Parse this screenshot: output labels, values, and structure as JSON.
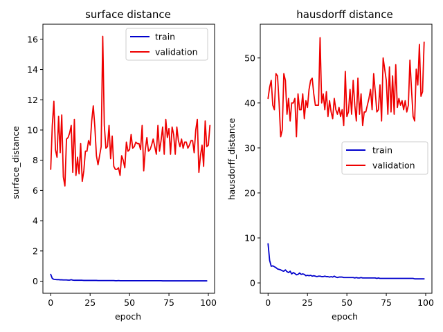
{
  "chart_data": [
    {
      "type": "line",
      "title": "surface distance",
      "xlabel": "epoch",
      "ylabel": "surface_distance",
      "xlim": [
        -4.95,
        103.95
      ],
      "ylim": [
        -0.8,
        17.0
      ],
      "xticks": [
        0,
        25,
        50,
        75,
        100
      ],
      "yticks": [
        0,
        2,
        4,
        6,
        8,
        10,
        12,
        14,
        16
      ],
      "grid": false,
      "legend_position": "top-right",
      "series": [
        {
          "name": "train",
          "color": "#0000cc",
          "values": [
            0.45,
            0.18,
            0.12,
            0.11,
            0.1,
            0.1,
            0.09,
            0.09,
            0.08,
            0.08,
            0.08,
            0.07,
            0.07,
            0.1,
            0.07,
            0.06,
            0.06,
            0.06,
            0.06,
            0.06,
            0.06,
            0.05,
            0.05,
            0.05,
            0.05,
            0.05,
            0.05,
            0.05,
            0.05,
            0.05,
            0.04,
            0.04,
            0.04,
            0.04,
            0.04,
            0.04,
            0.04,
            0.04,
            0.04,
            0.04,
            0.04,
            0.03,
            0.03,
            0.04,
            0.03,
            0.03,
            0.03,
            0.03,
            0.03,
            0.03,
            0.03,
            0.03,
            0.03,
            0.03,
            0.03,
            0.03,
            0.03,
            0.03,
            0.03,
            0.03,
            0.03,
            0.03,
            0.03,
            0.03,
            0.03,
            0.03,
            0.03,
            0.03,
            0.03,
            0.03,
            0.03,
            0.02,
            0.02,
            0.02,
            0.02,
            0.02,
            0.02,
            0.02,
            0.02,
            0.02,
            0.02,
            0.02,
            0.02,
            0.02,
            0.02,
            0.02,
            0.02,
            0.02,
            0.02,
            0.02,
            0.02,
            0.02,
            0.02,
            0.02,
            0.02,
            0.02,
            0.02,
            0.02,
            0.02,
            0.02
          ]
        },
        {
          "name": "validation",
          "color": "#ee0000",
          "values": [
            7.4,
            10.3,
            11.9,
            8.7,
            8.2,
            10.9,
            8.5,
            11.0,
            6.9,
            6.3,
            9.4,
            9.5,
            9.8,
            10.3,
            7.2,
            10.7,
            7.0,
            8.2,
            7.1,
            9.1,
            6.6,
            7.3,
            8.6,
            8.6,
            9.3,
            9.0,
            10.6,
            11.6,
            10.2,
            8.3,
            7.7,
            8.3,
            8.9,
            16.2,
            10.3,
            8.8,
            8.9,
            10.3,
            8.1,
            9.6,
            7.6,
            7.4,
            7.4,
            7.5,
            7.0,
            8.3,
            8.0,
            7.5,
            9.2,
            8.6,
            8.7,
            9.7,
            8.8,
            8.9,
            9.2,
            9.1,
            9.1,
            8.7,
            10.3,
            7.3,
            8.7,
            9.5,
            8.6,
            8.7,
            9.0,
            9.4,
            8.9,
            8.4,
            10.3,
            8.6,
            9.3,
            10.2,
            8.4,
            10.7,
            9.5,
            10.1,
            8.4,
            10.2,
            9.7,
            8.4,
            10.2,
            9.3,
            8.9,
            9.4,
            8.8,
            9.2,
            9.2,
            8.8,
            9.0,
            9.3,
            9.3,
            8.5,
            10.0,
            10.7,
            7.2,
            8.3,
            9.0,
            7.6,
            10.6,
            8.9,
            9.0,
            10.3
          ]
        }
      ]
    },
    {
      "type": "line",
      "title": "hausdorff distance",
      "xlabel": "epoch",
      "ylabel": "hausdorff_distance",
      "xlim": [
        -4.95,
        103.95
      ],
      "ylim": [
        -2.3,
        57.5
      ],
      "xticks": [
        0,
        25,
        50,
        75,
        100
      ],
      "yticks": [
        0,
        10,
        20,
        30,
        40,
        50
      ],
      "grid": false,
      "legend_position": "center-right",
      "series": [
        {
          "name": "train",
          "color": "#0000cc",
          "values": [
            8.7,
            5.0,
            3.7,
            3.8,
            3.6,
            3.4,
            3.1,
            3.0,
            2.9,
            2.7,
            2.6,
            2.9,
            2.5,
            2.3,
            2.6,
            2.0,
            2.3,
            2.1,
            1.8,
            1.9,
            2.2,
            1.9,
            2.0,
            1.9,
            1.6,
            1.7,
            1.6,
            1.7,
            1.5,
            1.6,
            1.5,
            1.4,
            1.5,
            1.5,
            1.4,
            1.4,
            1.5,
            1.4,
            1.4,
            1.3,
            1.4,
            1.3,
            1.5,
            1.3,
            1.2,
            1.3,
            1.3,
            1.3,
            1.2,
            1.2,
            1.2,
            1.2,
            1.2,
            1.2,
            1.2,
            1.1,
            1.2,
            1.1,
            1.1,
            1.2,
            1.1,
            1.1,
            1.1,
            1.1,
            1.1,
            1.1,
            1.1,
            1.1,
            1.1,
            1.0,
            1.1,
            1.0,
            1.0,
            1.0,
            1.0,
            1.0,
            1.0,
            1.0,
            1.0,
            1.0,
            1.0,
            1.0,
            1.0,
            1.0,
            1.0,
            1.0,
            1.0,
            1.0,
            1.0,
            1.0,
            1.0,
            1.0,
            1.0,
            0.9,
            0.9,
            0.9,
            0.9,
            0.9,
            0.9,
            0.9
          ]
        },
        {
          "name": "validation",
          "color": "#ee0000",
          "values": [
            41.0,
            43.5,
            45.0,
            39.5,
            38.5,
            46.5,
            46.0,
            40.0,
            32.5,
            34.0,
            46.5,
            45.0,
            37.5,
            41.0,
            36.0,
            40.0,
            40.0,
            41.0,
            32.5,
            42.0,
            38.5,
            38.5,
            42.0,
            36.5,
            40.5,
            39.0,
            43.0,
            45.0,
            45.5,
            42.0,
            39.5,
            39.5,
            39.5,
            54.5,
            40.0,
            42.0,
            38.5,
            42.5,
            37.0,
            40.5,
            38.0,
            36.5,
            41.0,
            38.5,
            37.5,
            39.0,
            37.0,
            38.5,
            35.0,
            47.0,
            37.0,
            38.0,
            43.0,
            37.5,
            45.0,
            39.5,
            36.0,
            45.5,
            37.5,
            42.0,
            35.0,
            38.0,
            38.0,
            39.5,
            41.0,
            43.0,
            38.5,
            46.5,
            42.5,
            38.0,
            38.5,
            44.0,
            36.0,
            50.0,
            47.5,
            45.0,
            37.5,
            48.0,
            38.0,
            46.0,
            37.5,
            48.5,
            39.0,
            41.0,
            39.5,
            40.5,
            38.5,
            40.5,
            38.0,
            39.5,
            49.5,
            43.0,
            37.0,
            36.0,
            47.5,
            44.0,
            53.0,
            41.5,
            42.5,
            53.5
          ]
        }
      ]
    }
  ]
}
